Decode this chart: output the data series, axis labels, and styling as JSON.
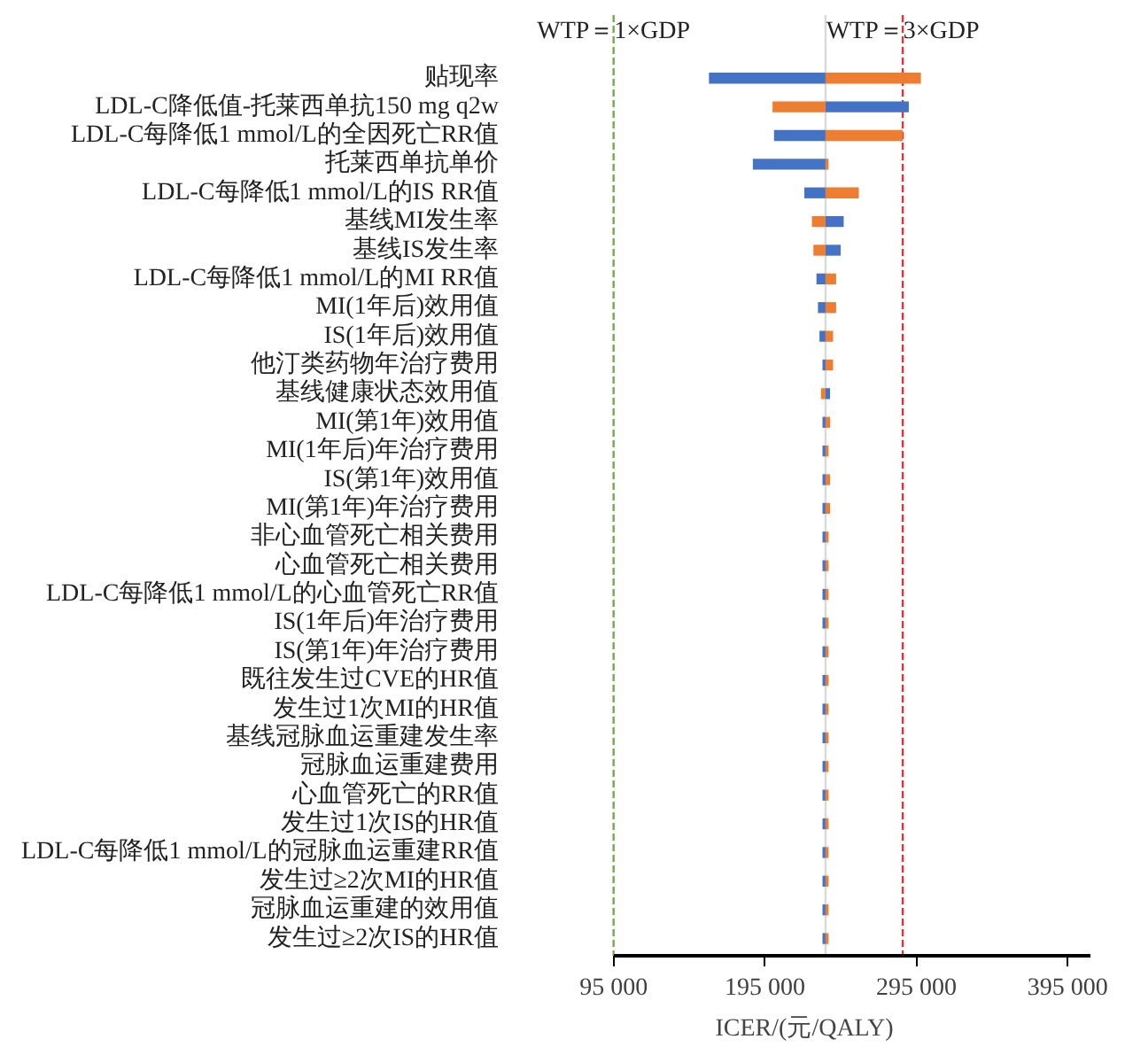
{
  "chart_data": {
    "type": "bar",
    "orientation": "horizontal",
    "xlabel": "ICER/(元/QALY)",
    "categories": [
      "贴现率",
      "LDL-C降低值-托莱西单抗150 mg q2w",
      "LDL-C每降低1 mmol/L的全因死亡RR值",
      "托莱西单抗单价",
      "LDL-C每降低1 mmol/L的IS RR值",
      "基线MI发生率",
      "基线IS发生率",
      "LDL-C每降低1 mmol/L的MI RR值",
      "MI(1年后)效用值",
      "IS(1年后)效用值",
      "他汀类药物年治疗费用",
      "基线健康状态效用值",
      "MI(第1年)效用值",
      "MI(1年后)年治疗费用",
      "IS(第1年)效用值",
      "MI(第1年)年治疗费用",
      "非心血管死亡相关费用",
      "心血管死亡相关费用",
      "LDL-C每降低1 mmol/L的心血管死亡RR值",
      "IS(1年后)年治疗费用",
      "IS(第1年)年治疗费用",
      "既往发生过CVE的HR值",
      "发生过1次MI的HR值",
      "基线冠脉血运重建发生率",
      "冠脉血运重建费用",
      "心血管死亡的RR值",
      "发生过1次IS的HR值",
      "LDL-C每降低1 mmol/L的冠脉血运重建RR值",
      "发生过≥2次MI的HR值",
      "冠脉血运重建的效用值",
      "发生过≥2次IS的HR值"
    ],
    "series": [
      {
        "color": "#4472c4",
        "base": [
          235000,
          235000,
          235000,
          235000,
          235000,
          235000,
          235000,
          235000,
          235000,
          235000,
          235000,
          235000,
          235000,
          235000,
          235000,
          235000,
          235000,
          235000,
          235000,
          235000,
          235000,
          235000,
          235000,
          235000,
          235000,
          235000,
          235000,
          235000,
          235000,
          235000,
          235000
        ],
        "values": [
          -77000,
          55000,
          -34000,
          -48000,
          -14000,
          12000,
          10000,
          -6000,
          -5000,
          -4000,
          -2000,
          3000,
          -2000,
          -2000,
          -2000,
          -2000,
          -2000,
          -2000,
          -2000,
          -2000,
          -2000,
          -2000,
          -2000,
          -2000,
          -2000,
          -2000,
          -2000,
          -2000,
          -2000,
          -2000,
          -2000
        ]
      },
      {
        "color": "#ed7d31",
        "base": [
          235000,
          235000,
          235000,
          235000,
          235000,
          235000,
          235000,
          235000,
          235000,
          235000,
          235000,
          235000,
          235000,
          235000,
          235000,
          235000,
          235000,
          235000,
          235000,
          235000,
          235000,
          235000,
          235000,
          235000,
          235000,
          235000,
          235000,
          235000,
          235000,
          235000,
          235000
        ],
        "values": [
          63000,
          -35000,
          51000,
          2000,
          22000,
          -9000,
          -8000,
          7000,
          7000,
          5000,
          5000,
          -3000,
          3000,
          2000,
          3000,
          3000,
          2000,
          2000,
          2000,
          2000,
          2000,
          2000,
          2000,
          2000,
          2000,
          2000,
          2000,
          2000,
          2000,
          2000,
          2000
        ]
      }
    ],
    "xlim": [
      95000,
      410000
    ],
    "xticks": [
      {
        "value": 95000,
        "label": "95 000"
      },
      {
        "value": 195000,
        "label": "195 000"
      },
      {
        "value": 295000,
        "label": "295 000"
      },
      {
        "value": 395000,
        "label": "395 000"
      }
    ],
    "ref_lines": [
      {
        "axis": "x",
        "value": 235000,
        "label": null,
        "color": "#d9d9d9",
        "line_style": "solid"
      },
      {
        "axis": "x",
        "value": 95000,
        "label": "WTP＝1×GDP",
        "color": "#70ad47",
        "line_style": "dashed"
      },
      {
        "axis": "x",
        "value": 286000,
        "label": "WTP＝3×GDP",
        "color": "#e0303a",
        "line_style": "dashed"
      }
    ],
    "grid": false
  }
}
